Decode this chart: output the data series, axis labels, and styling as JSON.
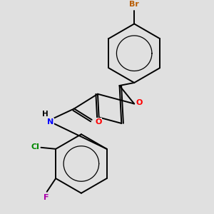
{
  "background_color": "#e0e0e0",
  "atom_colors": {
    "Br": "#b85c00",
    "O": "#ff0000",
    "N": "#0000ff",
    "Cl": "#008800",
    "F": "#aa00aa",
    "C": "#000000",
    "H": "#000000"
  },
  "lw": 1.4
}
